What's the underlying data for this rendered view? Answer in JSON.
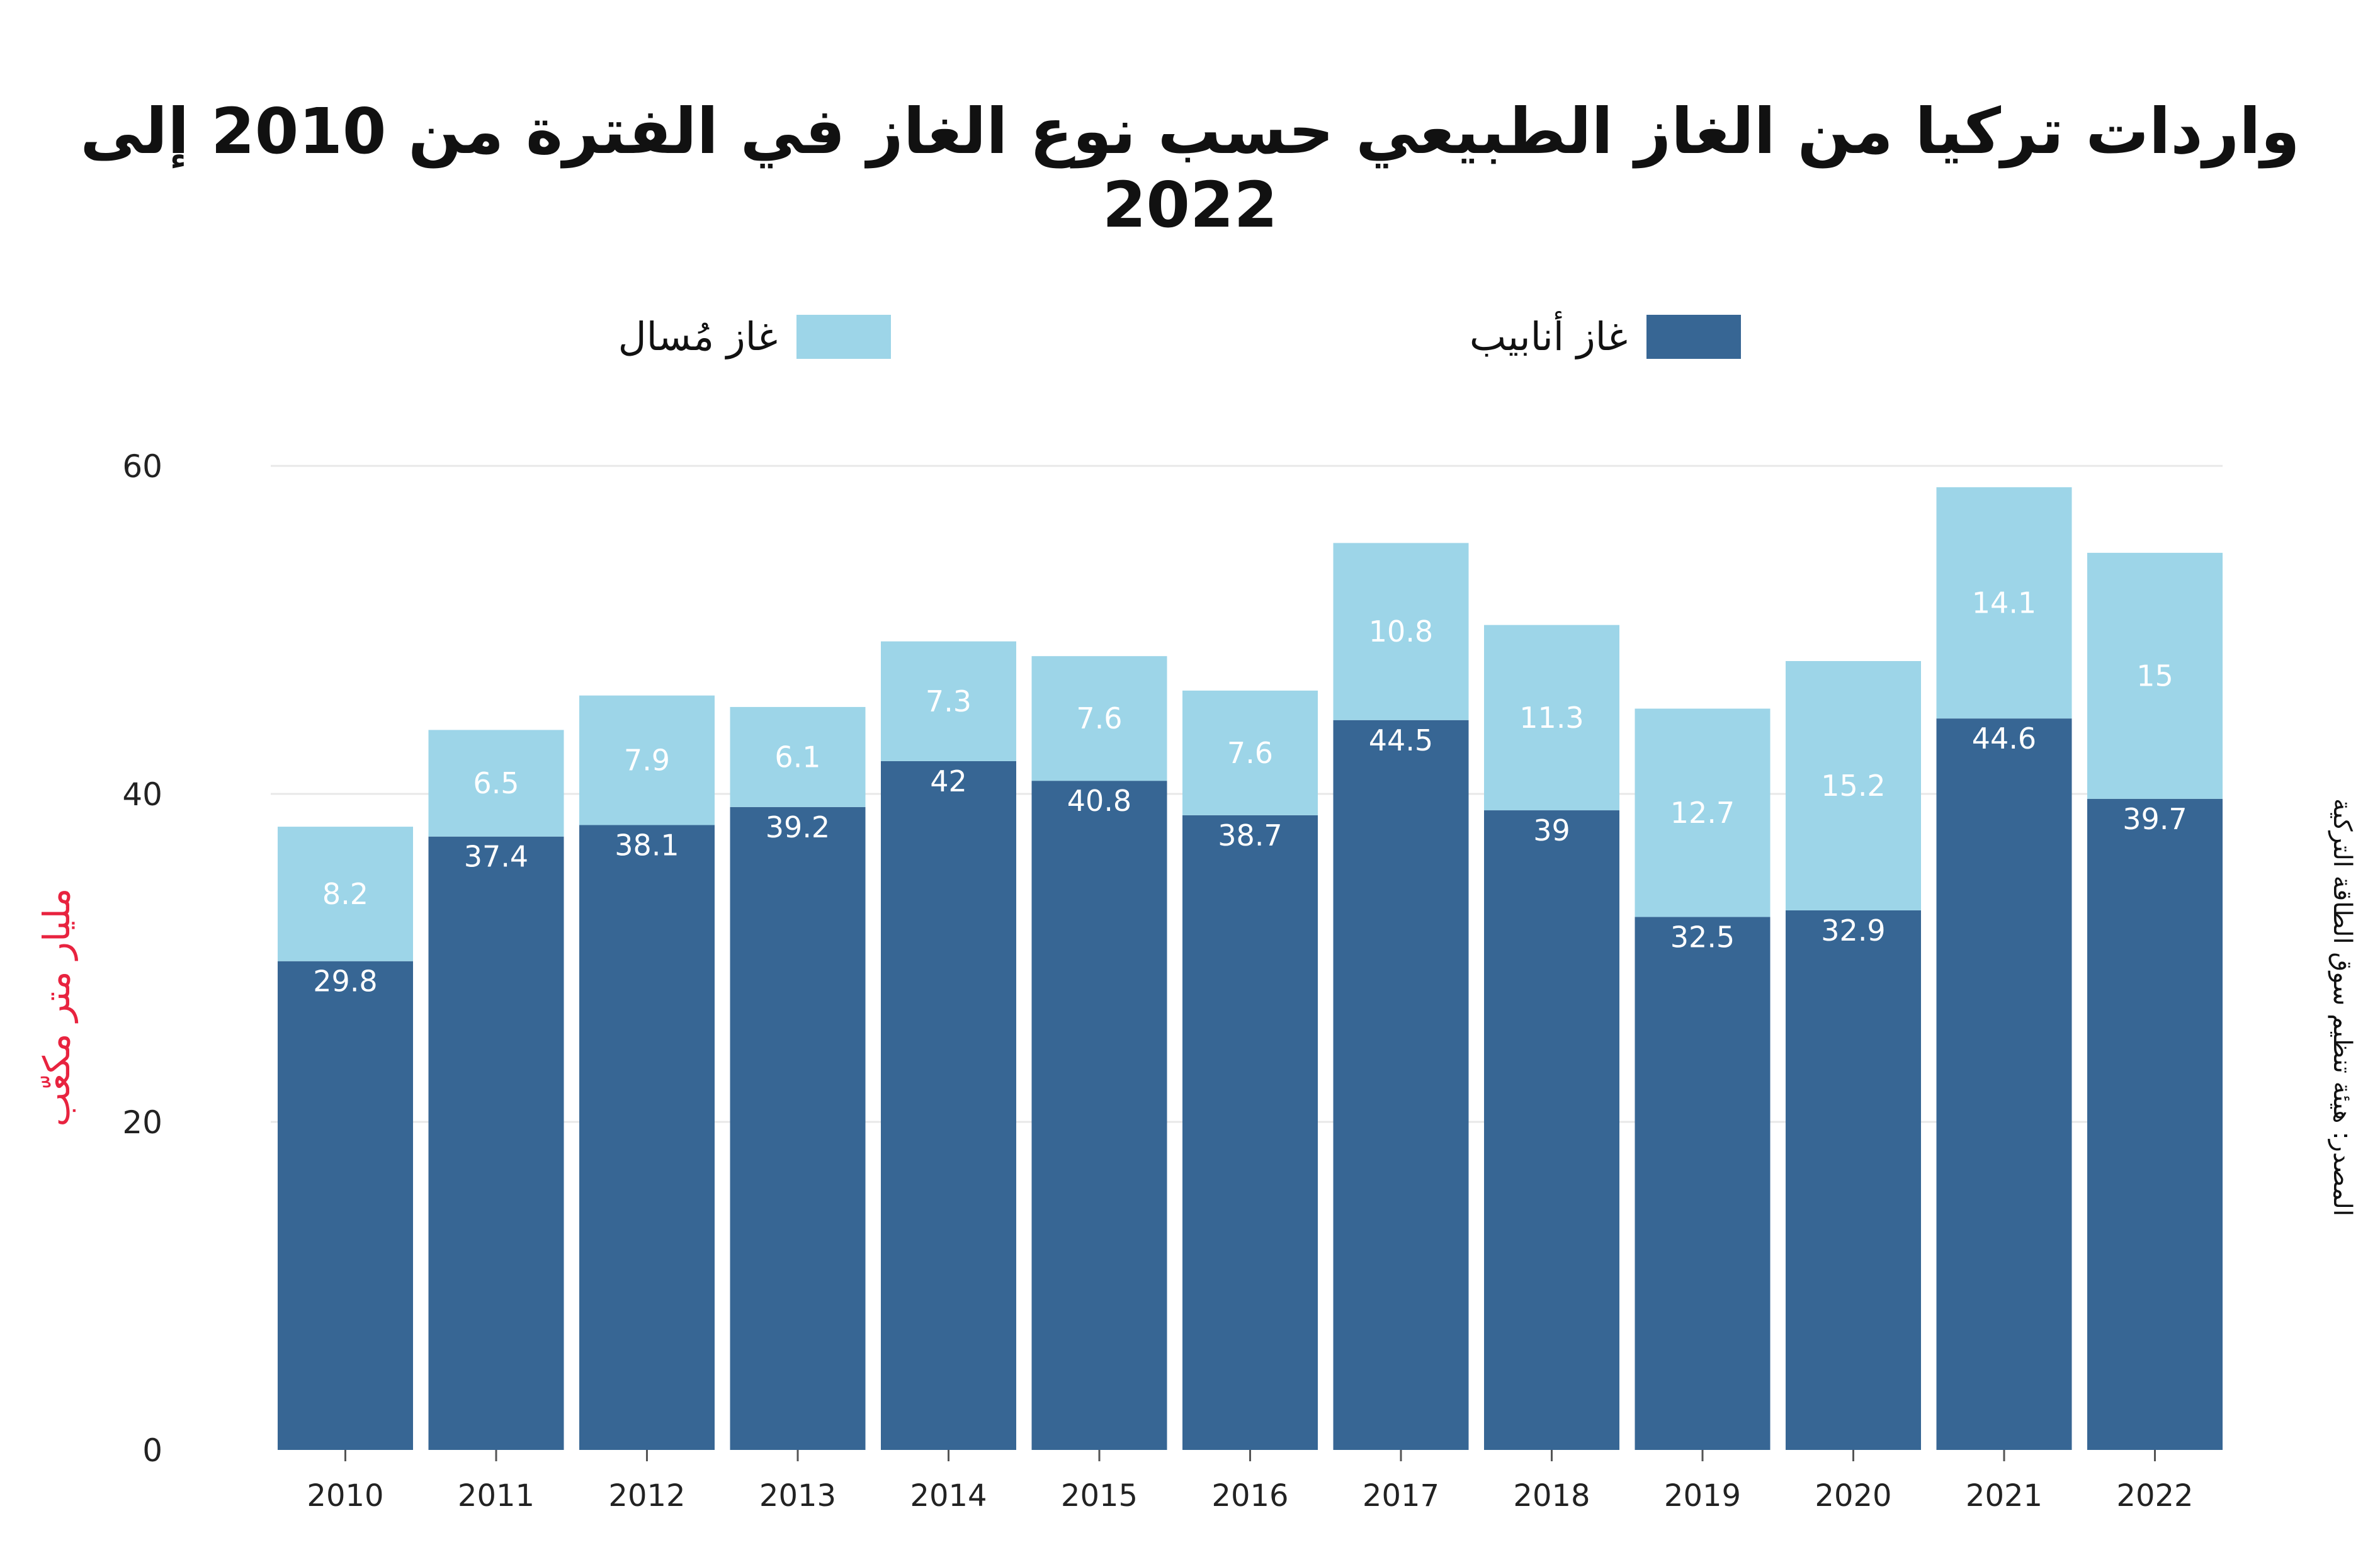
{
  "title": "واردات تركيا من الغاز الطبيعي حسب نوع الغاز في الفترة من 2010 إلى 2022",
  "legend": [
    {
      "label": "غاز أنابيب",
      "color": "#376694"
    },
    {
      "label": "غاز مُسال",
      "color": "#9dd5e8"
    }
  ],
  "ylabel": "مليار متر مكعّب",
  "source": "المصدر: هيئة تنظيم سوق الطاقة التركية",
  "chart_data": {
    "type": "bar",
    "stacked": true,
    "categories": [
      "2010",
      "2011",
      "2012",
      "2013",
      "2014",
      "2015",
      "2016",
      "2017",
      "2018",
      "2019",
      "2020",
      "2021",
      "2022"
    ],
    "series": [
      {
        "name": "غاز أنابيب",
        "color": "#376694",
        "label_color": "#ffffff",
        "values": [
          29.8,
          37.4,
          38.1,
          39.2,
          42,
          40.8,
          38.7,
          44.5,
          39,
          32.5,
          32.9,
          44.6,
          39.7
        ],
        "labels": [
          "29.8",
          "37.4",
          "38.1",
          "39.2",
          "42",
          "40.8",
          "38.7",
          "44.5",
          "39",
          "32.5",
          "32.9",
          "44.6",
          "39.7"
        ]
      },
      {
        "name": "غاز مُسال",
        "color": "#9dd5e8",
        "label_color": "#ffffff",
        "values": [
          8.2,
          6.5,
          7.9,
          6.1,
          7.3,
          7.6,
          7.6,
          10.8,
          11.3,
          12.7,
          15.2,
          14.1,
          15
        ],
        "labels": [
          "8.2",
          "6.5",
          "7.9",
          "6.1",
          "7.3",
          "7.6",
          "7.6",
          "10.8",
          "11.3",
          "12.7",
          "15.2",
          "14.1",
          "15"
        ]
      }
    ],
    "ylim": [
      0,
      60
    ],
    "yticks": [
      0,
      20,
      40,
      60
    ],
    "ytick_labels": [
      "0",
      "20",
      "40",
      "60"
    ],
    "grid": true,
    "legend_position": "top"
  }
}
